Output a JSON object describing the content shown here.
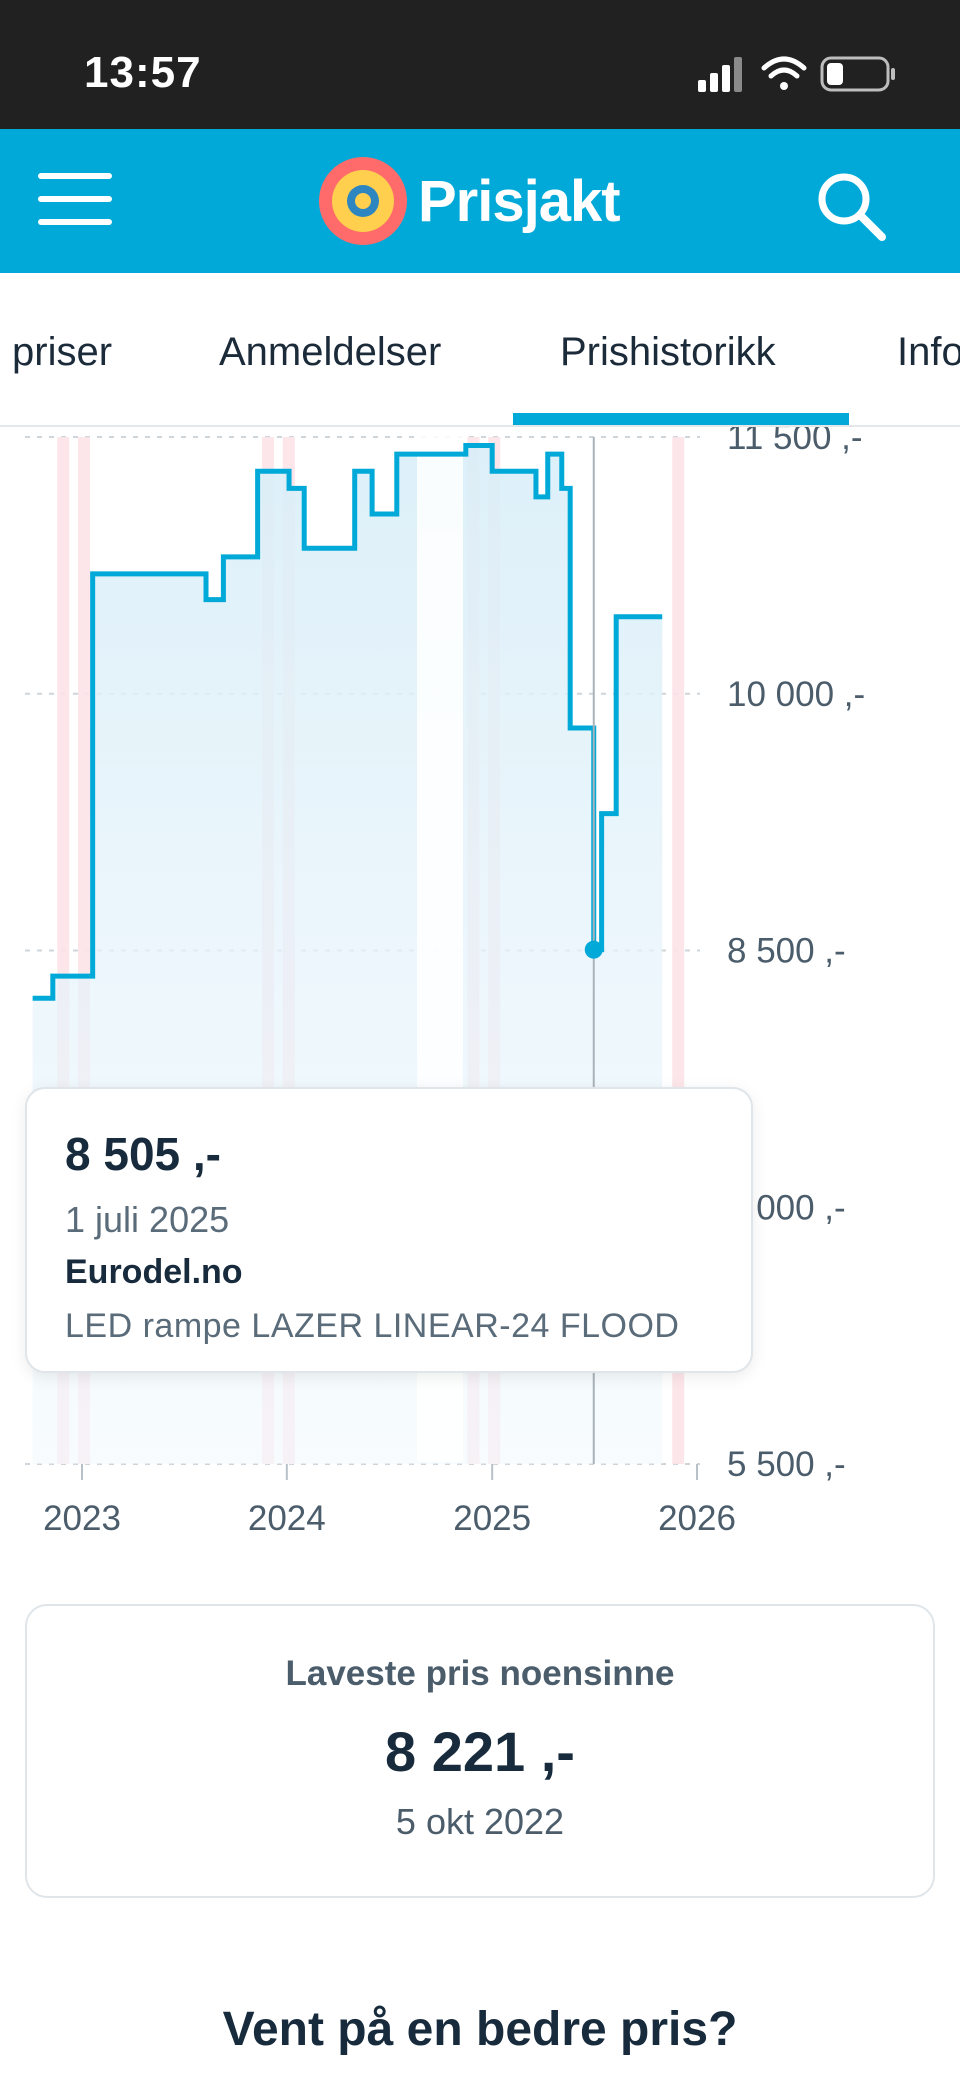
{
  "status_bar": {
    "time": "13:57"
  },
  "header": {
    "brand_name": "Prisjakt",
    "menu_icon": "hamburger-menu-icon",
    "search_icon": "search-icon",
    "background_color": "#00a9d8"
  },
  "tabs": [
    {
      "label": "priser",
      "active": false
    },
    {
      "label": "Anmeldelser",
      "active": false
    },
    {
      "label": "Prishistorikk",
      "active": true
    },
    {
      "label": "Info",
      "active": false
    }
  ],
  "chart_data": {
    "type": "line",
    "step": true,
    "x_ticks": [
      "2023",
      "2024",
      "2025",
      "2026"
    ],
    "y_ticks": [
      "11 500 ,-",
      "10 000 ,-",
      "8 500 ,-",
      "7 000 ,-",
      "5 500 ,-"
    ],
    "ylim": [
      5500,
      11500
    ],
    "series": [
      {
        "color": "#00a9d8",
        "points": [
          {
            "x": "2022-10-05",
            "y": 8221
          },
          {
            "x": "2022-11-10",
            "y": 8350
          },
          {
            "x": "2023-01-20",
            "y": 10700
          },
          {
            "x": "2023-08-10",
            "y": 10550
          },
          {
            "x": "2023-09-10",
            "y": 10800
          },
          {
            "x": "2023-11-10",
            "y": 11300
          },
          {
            "x": "2024-01-05",
            "y": 11200
          },
          {
            "x": "2024-02-01",
            "y": 10850
          },
          {
            "x": "2024-05-01",
            "y": 11300
          },
          {
            "x": "2024-06-01",
            "y": 11050
          },
          {
            "x": "2024-07-15",
            "y": 11400
          },
          {
            "x": "2024-11-15",
            "y": 11450
          },
          {
            "x": "2025-01-01",
            "y": 11300
          },
          {
            "x": "2025-03-20",
            "y": 11150
          },
          {
            "x": "2025-04-10",
            "y": 11400
          },
          {
            "x": "2025-05-05",
            "y": 11200
          },
          {
            "x": "2025-05-20",
            "y": 9800
          },
          {
            "x": "2025-07-01",
            "y": 8505
          },
          {
            "x": "2025-07-15",
            "y": 9300
          },
          {
            "x": "2025-08-10",
            "y": 10450
          },
          {
            "x": "2025-10-31",
            "y": 10450
          }
        ]
      }
    ],
    "highlight_point": {
      "x": "2025-07-01",
      "y": 8505
    }
  },
  "tooltip": {
    "price": "8 505 ,-",
    "date": "1 juli 2025",
    "shop": "Eurodel.no",
    "product": "LED rampe LAZER LINEAR-24 FLOOD"
  },
  "lowest_price": {
    "label": "Laveste pris noensinne",
    "price": "8 221 ,-",
    "date": "5 okt 2022"
  },
  "wait_section": {
    "title": "Vent på en bedre pris?"
  }
}
